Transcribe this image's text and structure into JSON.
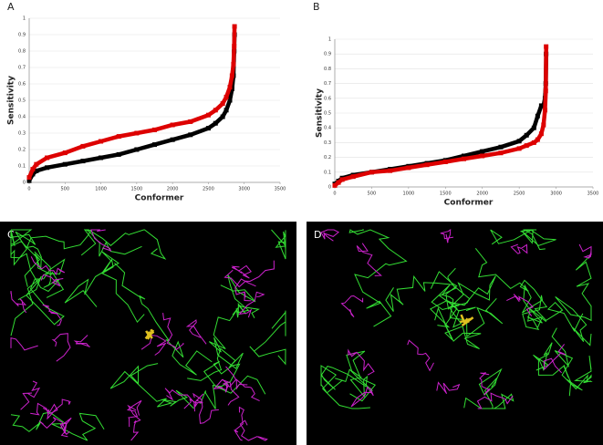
{
  "chart_data": [
    {
      "type": "scatter",
      "label": "A",
      "ylabel": "Sensitivity",
      "xlabel": "Conformer",
      "x": [
        0,
        50,
        100,
        250,
        500,
        750,
        1000,
        1250,
        1500,
        1750,
        2000,
        2250,
        2500,
        2600,
        2700,
        2750,
        2800,
        2830,
        2850,
        2860,
        2865
      ],
      "series": [
        {
          "color": "#000000",
          "values": [
            0.01,
            0.05,
            0.07,
            0.09,
            0.11,
            0.13,
            0.15,
            0.17,
            0.2,
            0.23,
            0.26,
            0.29,
            0.33,
            0.36,
            0.4,
            0.44,
            0.5,
            0.57,
            0.65,
            0.8,
            0.9
          ]
        },
        {
          "color": "#dd0000",
          "values": [
            0.03,
            0.08,
            0.11,
            0.15,
            0.18,
            0.22,
            0.25,
            0.28,
            0.3,
            0.32,
            0.35,
            0.37,
            0.41,
            0.44,
            0.48,
            0.52,
            0.58,
            0.65,
            0.72,
            0.83,
            0.95
          ]
        }
      ],
      "xlim": [
        0,
        3500
      ],
      "xticks": [
        0,
        500,
        1000,
        1500,
        2000,
        2500,
        3000,
        3500
      ],
      "ylim": [
        0,
        1
      ],
      "yticks": [
        0,
        0.1,
        0.2,
        0.3,
        0.4,
        0.5,
        0.6,
        0.7,
        0.8,
        0.9,
        1
      ],
      "grid": true
    },
    {
      "type": "scatter",
      "label": "B",
      "ylabel": "Sensitivity",
      "xlabel": "Conformer",
      "x": [
        0,
        50,
        100,
        250,
        500,
        750,
        1000,
        1250,
        1500,
        1750,
        2000,
        2250,
        2500,
        2600,
        2700,
        2750,
        2800,
        2830,
        2850,
        2860,
        2865
      ],
      "series": [
        {
          "color": "#000000",
          "values": [
            0.02,
            0.04,
            0.06,
            0.08,
            0.1,
            0.12,
            0.14,
            0.16,
            0.18,
            0.21,
            0.24,
            0.27,
            0.31,
            0.35,
            0.4,
            0.48,
            0.55,
            0.55,
            0.6,
            0.7,
            0.9
          ]
        },
        {
          "color": "#dd0000",
          "values": [
            0.01,
            0.03,
            0.05,
            0.07,
            0.1,
            0.11,
            0.13,
            0.15,
            0.17,
            0.19,
            0.21,
            0.23,
            0.26,
            0.28,
            0.3,
            0.32,
            0.36,
            0.42,
            0.52,
            0.65,
            0.95
          ]
        }
      ],
      "xlim": [
        0,
        3500
      ],
      "xticks": [
        0,
        500,
        1000,
        1500,
        2000,
        2500,
        3000,
        3500
      ],
      "ylim": [
        0,
        1
      ],
      "yticks": [
        0,
        0.1,
        0.2,
        0.3,
        0.4,
        0.5,
        0.6,
        0.7,
        0.8,
        0.9,
        1
      ],
      "grid": true
    }
  ],
  "images": [
    {
      "label": "C"
    },
    {
      "label": "D"
    }
  ]
}
